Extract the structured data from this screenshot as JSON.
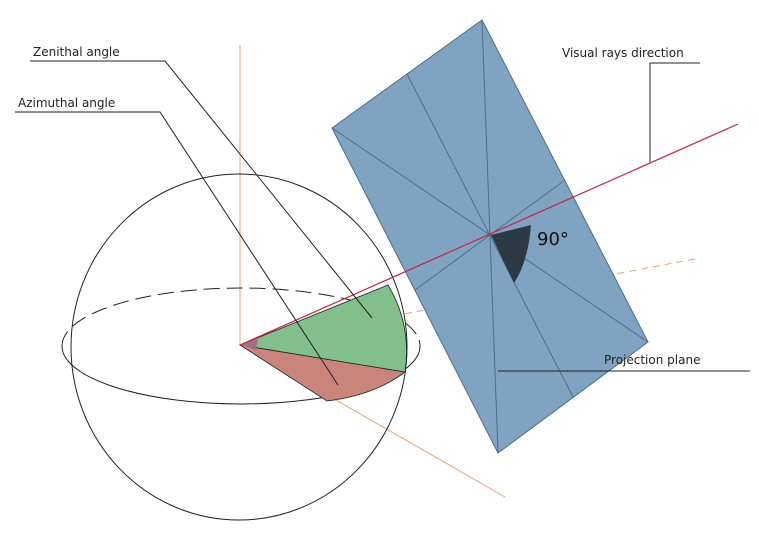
{
  "labels": {
    "zenithal_angle": "Zenithal angle",
    "azimuthal_angle": "Azimuthal angle",
    "visual_rays_direction": "Visual rays direction",
    "projection_plane": "Projection plane",
    "right_angle": "90°"
  },
  "colors": {
    "background": "#ffffff",
    "sphere_stroke": "#222222",
    "axis_orange": "#e8a37a",
    "ray_red": "#c4234a",
    "plane_fill": "#7fa3c0",
    "plane_stroke": "#4e6e88",
    "zenith_sector": "#83bf8c",
    "azimuth_sector": "#c9857c",
    "right_angle_mark": "#2c3a46"
  }
}
